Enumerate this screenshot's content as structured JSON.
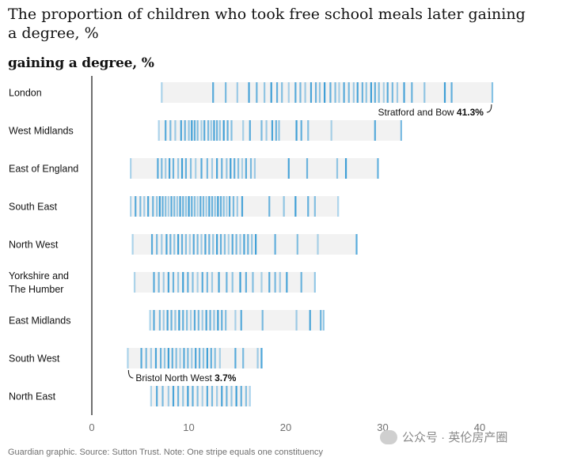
{
  "header": {
    "title": "The proportion of children who took free school meals later gaining a degree, %",
    "subtitle": "gaining a degree, %"
  },
  "footer": {
    "source": "Guardian graphic. Source: Sutton Trust. Note: One stripe equals one constituency"
  },
  "watermark": {
    "text": "公众号 · 英伦房产圈"
  },
  "colors": {
    "stripe": "#1d8fd1",
    "track": "#f2f2f2",
    "axis": "#121212",
    "tick_text": "#707070"
  },
  "chart_data": {
    "type": "strip",
    "xlim": [
      0,
      41.3
    ],
    "x_ticks": [
      0,
      10,
      20,
      30,
      40
    ],
    "categories": [
      "London",
      "West Midlands",
      "East of England",
      "South East",
      "North West",
      "Yorkshire and The Humber",
      "East Midlands",
      "South West",
      "North East"
    ],
    "series": [
      {
        "category": "London",
        "label_lines": [
          "London"
        ],
        "min": 7.2,
        "max": 41.3,
        "values": [
          7.2,
          12.5,
          13.8,
          15.0,
          16.2,
          17.0,
          17.8,
          18.5,
          19.1,
          19.6,
          20.3,
          21.0,
          21.5,
          22.0,
          22.6,
          23.1,
          23.5,
          24.0,
          24.6,
          25.1,
          25.5,
          26.0,
          26.5,
          27.0,
          27.4,
          27.9,
          28.3,
          28.8,
          29.2,
          29.6,
          30.1,
          30.5,
          31.0,
          31.5,
          32.2,
          33.0,
          34.3,
          36.4,
          37.1,
          41.3
        ]
      },
      {
        "category": "West Midlands",
        "label_lines": [
          "West Midlands"
        ],
        "min": 6.9,
        "max": 31.9,
        "values": [
          6.9,
          7.6,
          8.1,
          8.6,
          9.2,
          9.6,
          10.0,
          10.3,
          10.6,
          10.9,
          11.3,
          11.6,
          12.0,
          12.3,
          12.6,
          12.9,
          13.2,
          13.6,
          14.0,
          14.4,
          15.6,
          16.3,
          17.5,
          18.0,
          18.6,
          19.0,
          19.3,
          21.1,
          21.6,
          22.3,
          24.7,
          29.2,
          31.9
        ]
      },
      {
        "category": "East of England",
        "label_lines": [
          "East of England"
        ],
        "min": 4.0,
        "max": 29.5,
        "values": [
          4.0,
          6.8,
          7.2,
          7.6,
          8.0,
          8.4,
          8.9,
          9.3,
          9.7,
          10.2,
          10.7,
          11.3,
          11.9,
          12.4,
          12.9,
          13.4,
          13.9,
          14.3,
          14.7,
          15.1,
          15.5,
          15.9,
          16.4,
          16.8,
          20.3,
          22.2,
          25.3,
          26.2,
          29.5
        ]
      },
      {
        "category": "South East",
        "label_lines": [
          "South East"
        ],
        "min": 4.0,
        "max": 25.4,
        "values": [
          4.0,
          4.5,
          5.0,
          5.4,
          5.8,
          6.3,
          6.7,
          7.0,
          7.3,
          7.6,
          7.9,
          8.2,
          8.5,
          8.8,
          9.1,
          9.4,
          9.7,
          10.0,
          10.3,
          10.6,
          10.9,
          11.2,
          11.5,
          11.8,
          12.1,
          12.4,
          12.7,
          13.0,
          13.3,
          13.6,
          13.9,
          14.2,
          14.6,
          15.0,
          15.5,
          18.3,
          19.8,
          21.0,
          22.3,
          23.0,
          25.4
        ]
      },
      {
        "category": "North West",
        "label_lines": [
          "North West"
        ],
        "min": 4.2,
        "max": 27.3,
        "values": [
          4.2,
          6.2,
          6.7,
          7.2,
          7.7,
          8.1,
          8.5,
          8.9,
          9.3,
          9.7,
          10.1,
          10.5,
          10.9,
          11.3,
          11.7,
          12.1,
          12.5,
          12.9,
          13.3,
          13.7,
          14.1,
          14.5,
          14.9,
          15.3,
          15.7,
          16.1,
          16.5,
          16.9,
          18.9,
          21.2,
          23.3,
          27.3
        ]
      },
      {
        "category": "Yorkshire and The Humber",
        "label_lines": [
          "Yorkshire and",
          "The Humber"
        ],
        "min": 4.4,
        "max": 23.0,
        "values": [
          4.4,
          6.4,
          6.9,
          7.4,
          7.9,
          8.4,
          8.9,
          9.4,
          9.9,
          10.4,
          10.9,
          11.4,
          11.9,
          12.4,
          13.1,
          13.9,
          14.5,
          15.3,
          15.9,
          16.6,
          17.5,
          18.3,
          18.9,
          19.4,
          20.1,
          21.6,
          23.0
        ]
      },
      {
        "category": "East Midlands",
        "label_lines": [
          "East Midlands"
        ],
        "min": 6.0,
        "max": 23.9,
        "values": [
          6.0,
          6.4,
          7.0,
          7.4,
          7.8,
          8.2,
          8.6,
          9.0,
          9.4,
          9.8,
          10.2,
          10.6,
          11.0,
          11.4,
          11.8,
          12.2,
          12.6,
          13.0,
          13.4,
          13.8,
          14.8,
          15.4,
          17.6,
          21.1,
          22.5,
          23.6,
          23.9
        ]
      },
      {
        "category": "South West",
        "label_lines": [
          "South West"
        ],
        "min": 3.7,
        "max": 17.5,
        "values": [
          3.7,
          5.1,
          5.6,
          6.1,
          6.6,
          7.1,
          7.5,
          7.9,
          8.3,
          8.7,
          9.1,
          9.5,
          9.9,
          10.3,
          10.7,
          11.1,
          11.5,
          11.9,
          12.3,
          12.7,
          13.2,
          14.8,
          15.6,
          17.1,
          17.5
        ]
      },
      {
        "category": "North East",
        "label_lines": [
          "North East"
        ],
        "min": 6.1,
        "max": 16.3,
        "values": [
          6.1,
          6.7,
          7.3,
          7.9,
          8.4,
          8.9,
          9.4,
          9.9,
          10.4,
          10.9,
          11.4,
          11.9,
          12.4,
          12.9,
          13.4,
          13.9,
          14.4,
          14.9,
          15.4,
          15.9,
          16.3
        ]
      }
    ],
    "annotations": [
      {
        "category": "London",
        "text": "Stratford and Bow",
        "value_label": "41.3%",
        "value": 41.3
      },
      {
        "category": "South West",
        "text": "Bristol North West",
        "value_label": "3.7%",
        "value": 3.7
      }
    ]
  }
}
